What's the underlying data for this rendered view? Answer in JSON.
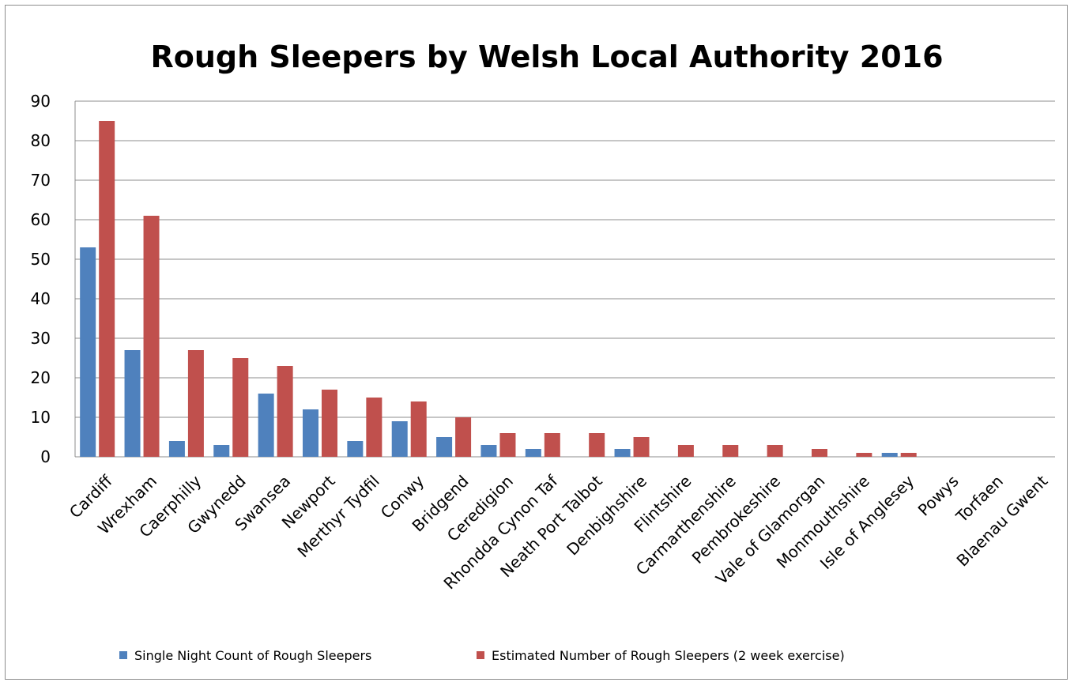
{
  "chart_data": {
    "type": "bar",
    "title": "Rough Sleepers by Welsh Local Authority 2016",
    "xlabel": "",
    "ylabel": "",
    "ylim": [
      0,
      90
    ],
    "yticks": [
      "0",
      "10",
      "20",
      "30",
      "40",
      "50",
      "60",
      "70",
      "80",
      "90"
    ],
    "grid": true,
    "legend_position": "bottom",
    "categories": [
      "Cardiff",
      "Wrexham",
      "Caerphilly",
      "Gwynedd",
      "Swansea",
      "Newport",
      "Merthyr Tydfil",
      "Conwy",
      "Bridgend",
      "Ceredigion",
      "Rhondda Cynon Taf",
      "Neath Port Talbot",
      "Denbighshire",
      "Flintshire",
      "Carmarthenshire",
      "Pembrokeshire",
      "Vale of Glamorgan",
      "Monmouthshire",
      "Isle of Anglesey",
      "Powys",
      "Torfaen",
      "Blaenau Gwent"
    ],
    "series": [
      {
        "name": "Single Night Count of Rough Sleepers",
        "color": "#4f81bd",
        "values": [
          53,
          27,
          4,
          3,
          16,
          12,
          4,
          9,
          5,
          3,
          2,
          0,
          2,
          0,
          0,
          0,
          0,
          0,
          1,
          0,
          0,
          0
        ]
      },
      {
        "name": "Estimated Number of Rough Sleepers (2 week exercise)",
        "color": "#c0504d",
        "values": [
          85,
          61,
          27,
          25,
          23,
          17,
          15,
          14,
          10,
          6,
          6,
          6,
          5,
          3,
          3,
          3,
          2,
          1,
          1,
          0,
          0,
          0
        ]
      }
    ]
  }
}
